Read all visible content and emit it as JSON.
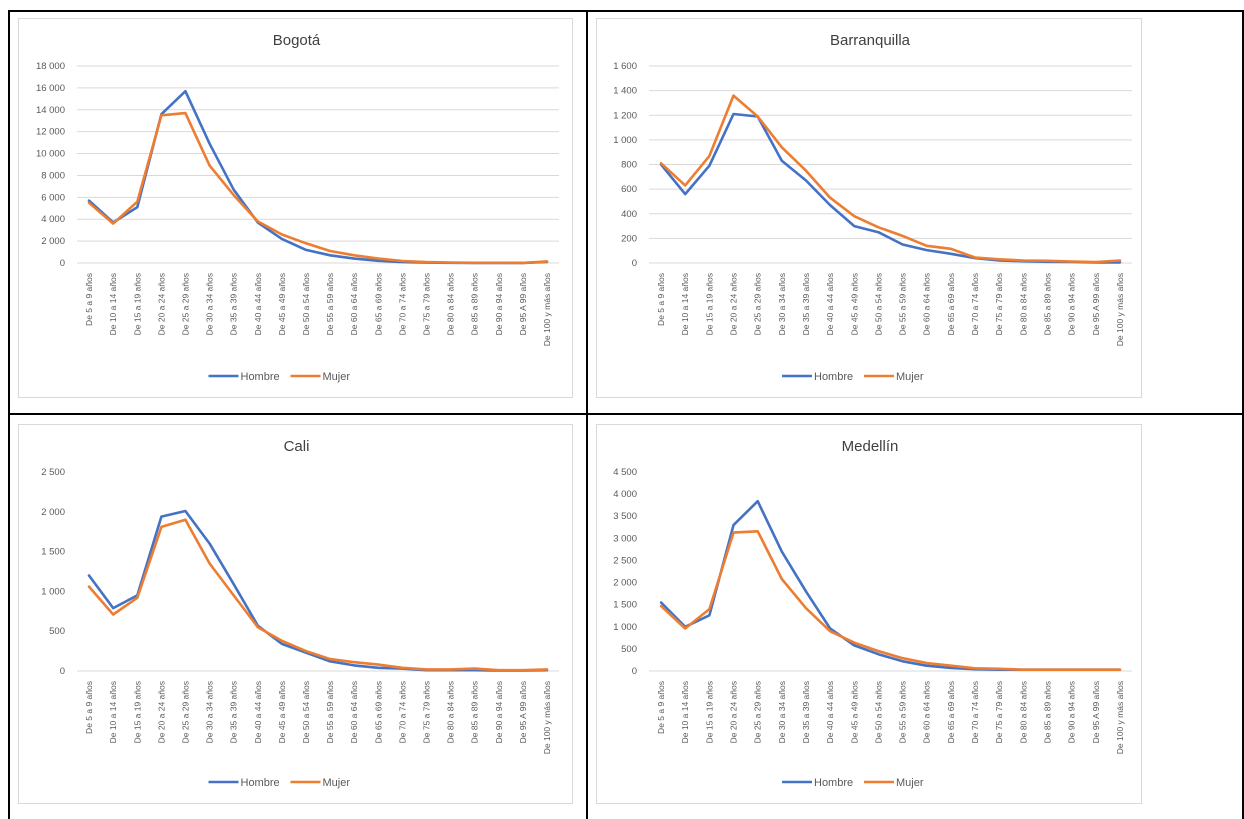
{
  "colors": {
    "hombre": "#4472C4",
    "mujer": "#ED7D31",
    "grid": "#D9D9D9"
  },
  "chart_data": [
    {
      "type": "line",
      "title": "Bogotá",
      "ylim": [
        0,
        18000
      ],
      "yticks": [
        0,
        2000,
        4000,
        6000,
        8000,
        10000,
        12000,
        14000,
        16000,
        18000
      ],
      "ytick_labels": [
        "0",
        "2 000",
        "4 000",
        "6 000",
        "8 000",
        "10 000",
        "12 000",
        "14 000",
        "16 000",
        "18 000"
      ],
      "categories": [
        "De 5 a 9 años",
        "De 10 a 14 años",
        "De 15 a 19 años",
        "De 20 a 24 años",
        "De 25 a 29 años",
        "De 30 a 34 años",
        "De 35 a 39 años",
        "De 40 a 44 años",
        "De 45 a 49 años",
        "De 50 a 54 años",
        "De 55 a 59 años",
        "De 60 a 64 años",
        "De 65 a 69 años",
        "De 70 a 74 años",
        "De 75 a 79 años",
        "De 80 a 84 años",
        "De 85 a 89 años",
        "De 90 a 94 años",
        "De 95 A 99 años",
        "De 100 y más años"
      ],
      "series": [
        {
          "name": "Hombre",
          "values": [
            5700,
            3700,
            5100,
            13600,
            15700,
            10900,
            6700,
            3700,
            2200,
            1200,
            700,
            400,
            200,
            80,
            40,
            20,
            10,
            10,
            10,
            100
          ]
        },
        {
          "name": "Mujer",
          "values": [
            5500,
            3600,
            5600,
            13500,
            13700,
            8900,
            6200,
            3800,
            2600,
            1800,
            1100,
            700,
            400,
            180,
            80,
            40,
            20,
            15,
            10,
            150
          ]
        }
      ],
      "legend": "bottom",
      "grid": true
    },
    {
      "type": "line",
      "title": "Barranquilla",
      "ylim": [
        0,
        1600
      ],
      "yticks": [
        0,
        200,
        400,
        600,
        800,
        1000,
        1200,
        1400,
        1600
      ],
      "ytick_labels": [
        "0",
        "200",
        "400",
        "600",
        "800",
        "1 000",
        "1 200",
        "1 400",
        "1 600"
      ],
      "categories": [
        "De 5 a 9 años",
        "De 10 a 14 años",
        "De 15 a 19 años",
        "De 20 a 24 años",
        "De 25 a 29 años",
        "De 30 a 34 años",
        "De 35 a 39 años",
        "De 40 a 44 años",
        "De 45 a 49 años",
        "De 50 a 54 años",
        "De 55 a 59 años",
        "De 60 a 64 años",
        "De 65 a 69 años",
        "De 70 a 74 años",
        "De 75 a 79 años",
        "De 80 a 84 años",
        "De 85 a 89 años",
        "De 90 a 94 años",
        "De 95 A 99 años",
        "De 100 y más años"
      ],
      "series": [
        {
          "name": "Hombre",
          "values": [
            800,
            560,
            790,
            1210,
            1190,
            830,
            670,
            470,
            300,
            250,
            150,
            105,
            75,
            40,
            20,
            15,
            10,
            8,
            5,
            5
          ]
        },
        {
          "name": "Mujer",
          "values": [
            810,
            630,
            870,
            1360,
            1190,
            940,
            750,
            530,
            380,
            290,
            220,
            140,
            115,
            45,
            30,
            20,
            18,
            12,
            8,
            20
          ]
        }
      ],
      "legend": "bottom",
      "grid": true
    },
    {
      "type": "line",
      "title": "Cali",
      "ylim": [
        0,
        2500
      ],
      "yticks": [
        0,
        500,
        1000,
        1500,
        2000,
        2500
      ],
      "ytick_labels": [
        "0",
        "500",
        "1 000",
        "1 500",
        "2 000",
        "2 500"
      ],
      "categories": [
        "De 5 a 9 años",
        "De 10 a 14 años",
        "De 15 a 19 años",
        "De 20 a 24 años",
        "De 25 a 29 años",
        "De 30 a 34 años",
        "De 35 a 39 años",
        "De 40 a 44 años",
        "De 45 a 49 años",
        "De 50 a 54 años",
        "De 55 a 59 años",
        "De 60 a 64 años",
        "De 65 a 69 años",
        "De 70 a 74 años",
        "De 75 a 79 años",
        "De 80 a 84 años",
        "De 85 a 89 años",
        "De 90 a 94 años",
        "De 95 A 99 años",
        "De 100 y más años"
      ],
      "series": [
        {
          "name": "Hombre",
          "values": [
            1200,
            790,
            950,
            1940,
            2010,
            1600,
            1090,
            570,
            340,
            230,
            120,
            70,
            40,
            30,
            10,
            10,
            10,
            5,
            5,
            10
          ]
        },
        {
          "name": "Mujer",
          "values": [
            1060,
            710,
            920,
            1810,
            1900,
            1350,
            950,
            550,
            380,
            250,
            150,
            110,
            80,
            40,
            20,
            20,
            30,
            10,
            10,
            20
          ]
        }
      ],
      "legend": "bottom",
      "grid": false
    },
    {
      "type": "line",
      "title": "Medellín",
      "ylim": [
        0,
        4500
      ],
      "yticks": [
        0,
        500,
        1000,
        1500,
        2000,
        2500,
        3000,
        3500,
        4000,
        4500
      ],
      "ytick_labels": [
        "0",
        "500",
        "1 000",
        "1 500",
        "2 000",
        "2 500",
        "3 000",
        "3 500",
        "4 000",
        "4 500"
      ],
      "categories": [
        "De 5 a 9 años",
        "De 10 a 14 años",
        "De 15 a 19 años",
        "De 20 a 24 años",
        "De 25 a 29 años",
        "De 30 a 34 años",
        "De 35 a 39 años",
        "De 40 a 44 años",
        "De 45 a 49 años",
        "De 50 a 54 años",
        "De 55 a 59 años",
        "De 60 a 64 años",
        "De 65 a 69 años",
        "De 70 a 74 años",
        "De 75 a 79 años",
        "De 80 a 84 años",
        "De 85 a 89 años",
        "De 90 a 94 años",
        "De 95 A 99 años",
        "De 100 y más años"
      ],
      "series": [
        {
          "name": "Hombre",
          "values": [
            1550,
            1000,
            1260,
            3300,
            3840,
            2700,
            1800,
            960,
            580,
            380,
            220,
            120,
            70,
            40,
            30,
            30,
            30,
            30,
            30,
            30
          ]
        },
        {
          "name": "Mujer",
          "values": [
            1470,
            960,
            1400,
            3130,
            3160,
            2080,
            1420,
            900,
            640,
            450,
            290,
            180,
            120,
            60,
            50,
            30,
            30,
            30,
            30,
            30
          ]
        }
      ],
      "legend": "bottom",
      "grid": false
    }
  ]
}
